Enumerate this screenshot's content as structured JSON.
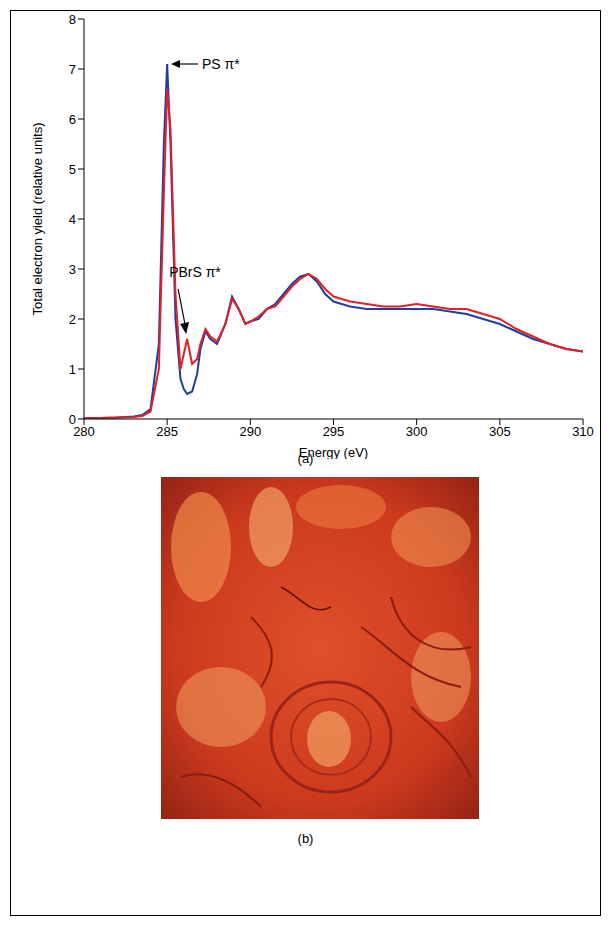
{
  "chart_data": {
    "type": "line",
    "panel_label": "(a)",
    "x_label": "Energy (eV)",
    "y_label": "Total electron yield (relative units)",
    "x": [
      280,
      281,
      282,
      283,
      283.5,
      284,
      284.5,
      284.8,
      285,
      285.2,
      285.5,
      285.8,
      286,
      286.2,
      286.5,
      286.8,
      287,
      287.3,
      287.6,
      288,
      288.5,
      288.9,
      289.3,
      289.7,
      290,
      290.5,
      291,
      291.5,
      292,
      292.5,
      293,
      293.5,
      294,
      294.5,
      295,
      296,
      297,
      298,
      299,
      300,
      301,
      302,
      303,
      304,
      305,
      306,
      307,
      308,
      309,
      310
    ],
    "series": [
      {
        "color": "#1f3f9a",
        "values": [
          0.02,
          0.02,
          0.03,
          0.05,
          0.08,
          0.2,
          1.5,
          5.5,
          7.1,
          5.5,
          2.0,
          0.8,
          0.6,
          0.5,
          0.55,
          0.9,
          1.4,
          1.75,
          1.6,
          1.5,
          1.9,
          2.45,
          2.2,
          1.9,
          1.95,
          2.0,
          2.2,
          2.3,
          2.5,
          2.7,
          2.85,
          2.9,
          2.75,
          2.5,
          2.35,
          2.25,
          2.2,
          2.2,
          2.2,
          2.2,
          2.2,
          2.15,
          2.1,
          2.0,
          1.9,
          1.75,
          1.6,
          1.5,
          1.4,
          1.35
        ]
      },
      {
        "color": "#e0202a",
        "values": [
          0.02,
          0.02,
          0.03,
          0.04,
          0.06,
          0.15,
          1.0,
          4.5,
          6.6,
          5.8,
          2.5,
          1.0,
          1.3,
          1.6,
          1.1,
          1.2,
          1.5,
          1.8,
          1.65,
          1.55,
          1.9,
          2.4,
          2.2,
          1.9,
          1.95,
          2.05,
          2.2,
          2.25,
          2.45,
          2.65,
          2.8,
          2.9,
          2.8,
          2.6,
          2.45,
          2.35,
          2.3,
          2.25,
          2.25,
          2.3,
          2.25,
          2.2,
          2.2,
          2.1,
          2.0,
          1.8,
          1.65,
          1.5,
          1.4,
          1.35
        ]
      }
    ],
    "xlim": [
      280,
      310
    ],
    "xticks": [
      280,
      285,
      290,
      295,
      300,
      305,
      310
    ],
    "ylim": [
      0,
      8
    ],
    "yticks": [
      0,
      1,
      2,
      3,
      4,
      5,
      6,
      7,
      8
    ],
    "grid": false,
    "annotations": [
      {
        "text": "PS π*",
        "x": 285.05,
        "y": 7.1
      },
      {
        "text": "PBrS π*",
        "x": 286.2,
        "y": 1.6
      }
    ]
  },
  "image_panel": {
    "panel_label": "(b)"
  }
}
